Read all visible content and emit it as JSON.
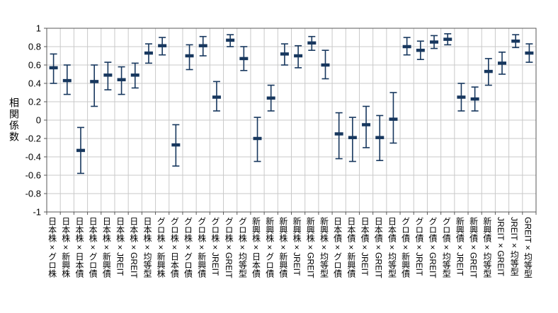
{
  "chart_data": {
    "type": "scatter",
    "variant": "errorbar-range",
    "title": "",
    "xlabel": "",
    "ylabel": "相関係数",
    "ylim": [
      -1,
      1
    ],
    "yticks": [
      1,
      0.8,
      0.6,
      0.4,
      0.2,
      0,
      -0.2,
      -0.4,
      -0.6,
      -0.8,
      -1
    ],
    "ytick_labels": [
      "1",
      "0.8",
      "0.6",
      "0.4",
      "0.2",
      "0",
      "-0.2",
      "-0.4",
      "-0.6",
      "-0.8",
      "-1"
    ],
    "grid": true,
    "legend": "none",
    "colors": {
      "marker": "#17375E",
      "grid": "#c9c9c9",
      "axis": "#595959",
      "text": "#000000",
      "background": "#ffffff"
    },
    "categories": [
      "日本株×グロ株",
      "日本株×新興株",
      "日本株×日本債",
      "日本株×グロ債",
      "日本株×新興債",
      "日本株×JREIT",
      "日本株×GREIT",
      "日本株×均等型",
      "グロ株×新興株",
      "グロ株×日本債",
      "グロ株×グロ債",
      "グロ株×新興債",
      "グロ株×JREIT",
      "グロ株×GREIT",
      "グロ株×均等型",
      "新興株×日本債",
      "新興株×グロ債",
      "新興株×新興債",
      "新興株×JREIT",
      "新興株×GREIT",
      "新興株×均等型",
      "日本債×グロ債",
      "日本債×新興債",
      "日本債×JREIT",
      "日本債×GREIT",
      "日本債×均等型",
      "グロ債×新興債",
      "グロ債×JREIT",
      "グロ債×GREIT",
      "グロ債×均等型",
      "新興債×JREIT",
      "新興債×GREIT",
      "新興債×均等型",
      "JREIT×GREIT",
      "JREIT×均等型",
      "GREIT×均等型"
    ],
    "series": [
      {
        "name": "相関係数",
        "center": [
          0.57,
          0.43,
          -0.33,
          0.42,
          0.49,
          0.44,
          0.49,
          0.73,
          0.81,
          -0.27,
          0.7,
          0.81,
          0.25,
          0.87,
          0.67,
          -0.2,
          0.24,
          0.72,
          0.7,
          0.84,
          0.6,
          -0.15,
          -0.19,
          -0.05,
          -0.19,
          0.01,
          0.8,
          0.76,
          0.85,
          0.88,
          0.25,
          0.23,
          0.53,
          0.62,
          0.86,
          0.73
        ],
        "low": [
          0.4,
          0.28,
          -0.58,
          0.15,
          0.33,
          0.28,
          0.35,
          0.62,
          0.71,
          -0.5,
          0.55,
          0.7,
          0.1,
          0.8,
          0.54,
          -0.45,
          0.1,
          0.6,
          0.57,
          0.76,
          0.45,
          -0.42,
          -0.45,
          -0.3,
          -0.44,
          -0.25,
          0.71,
          0.66,
          0.78,
          0.82,
          0.1,
          0.1,
          0.38,
          0.5,
          0.79,
          0.63
        ],
        "high": [
          0.72,
          0.6,
          -0.08,
          0.6,
          0.63,
          0.58,
          0.62,
          0.83,
          0.9,
          -0.05,
          0.82,
          0.91,
          0.42,
          0.93,
          0.8,
          0.03,
          0.38,
          0.83,
          0.81,
          0.91,
          0.76,
          0.08,
          0.03,
          0.15,
          0.05,
          0.3,
          0.9,
          0.86,
          0.92,
          0.94,
          0.4,
          0.36,
          0.67,
          0.74,
          0.93,
          0.83
        ]
      }
    ]
  }
}
